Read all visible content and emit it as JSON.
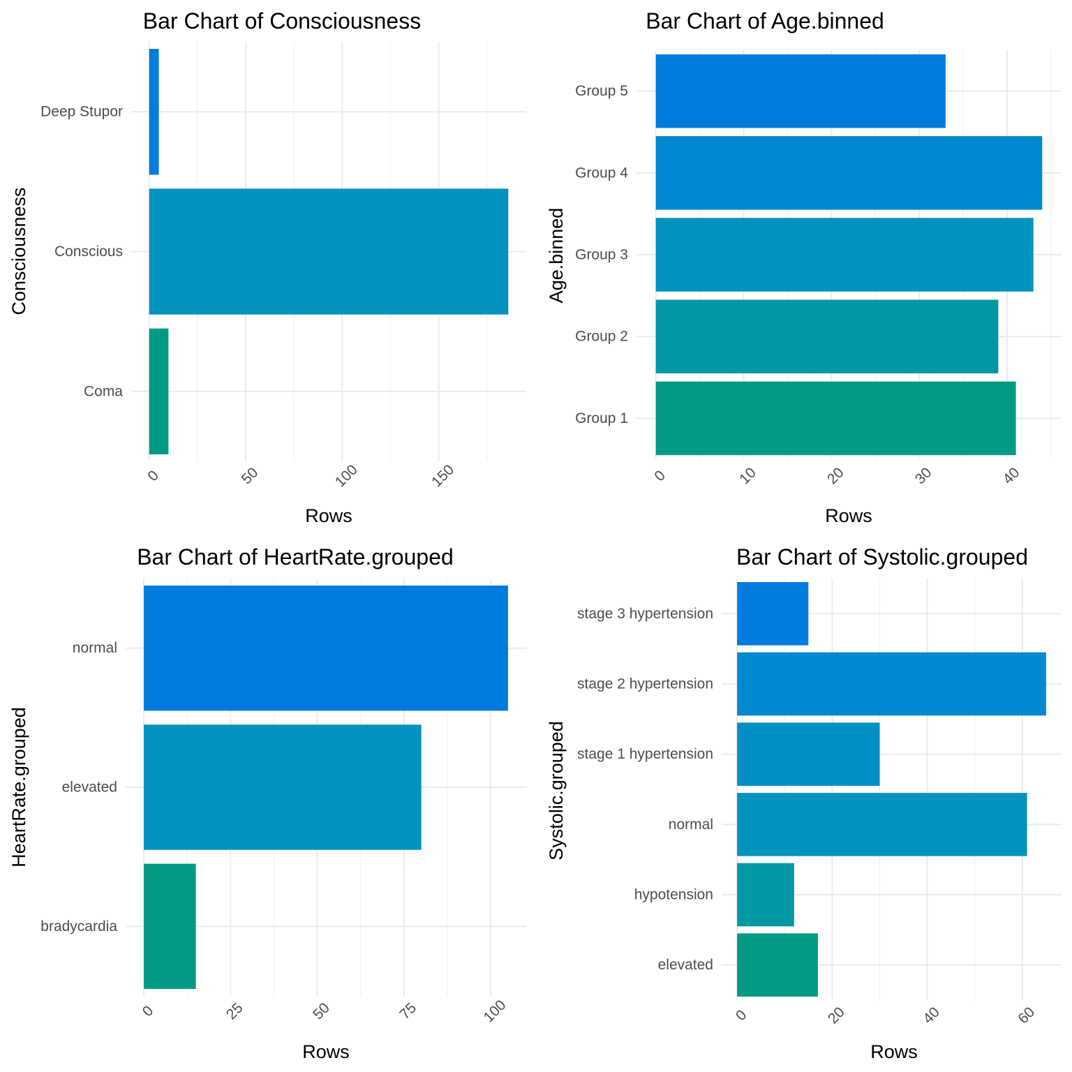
{
  "chart_data": [
    {
      "type": "bar",
      "orientation": "horizontal",
      "title": "Bar Chart of Consciousness",
      "xlabel": "Rows",
      "ylabel": "Consciousness",
      "categories": [
        "Coma",
        "Conscious",
        "Deep Stupor"
      ],
      "values": [
        10,
        186,
        5
      ],
      "colors": [
        "#009B82",
        "#0093BE",
        "#007BDE"
      ],
      "xticks": [
        0,
        50,
        100,
        150
      ],
      "xlim": [
        -9.3,
        195.3
      ],
      "grid": true
    },
    {
      "type": "bar",
      "orientation": "horizontal",
      "title": "Bar Chart of Age.binned",
      "xlabel": "Rows",
      "ylabel": "Age.binned",
      "categories": [
        "Group 1",
        "Group 2",
        "Group 3",
        "Group 4",
        "Group 5"
      ],
      "values": [
        41,
        39,
        43,
        44,
        33
      ],
      "colors": [
        "#009B82",
        "#0098A4",
        "#0093BE",
        "#0088D1",
        "#007BDE"
      ],
      "xticks": [
        0,
        10,
        20,
        30,
        40
      ],
      "xlim": [
        -2.2,
        46.2
      ],
      "grid": true
    },
    {
      "type": "bar",
      "orientation": "horizontal",
      "title": "Bar Chart of HeartRate.grouped",
      "xlabel": "Rows",
      "ylabel": "HeartRate.grouped",
      "categories": [
        "bradycardia",
        "elevated",
        "normal"
      ],
      "values": [
        15,
        80,
        105
      ],
      "colors": [
        "#009B82",
        "#0093BE",
        "#007BDE"
      ],
      "xticks": [
        0,
        25,
        50,
        75,
        100
      ],
      "xlim": [
        -5.25,
        110.25
      ],
      "grid": true
    },
    {
      "type": "bar",
      "orientation": "horizontal",
      "title": "Bar Chart of Systolic.grouped",
      "xlabel": "Rows",
      "ylabel": "Systolic.grouped",
      "categories": [
        "elevated",
        "hypotension",
        "normal",
        "stage 1 hypertension",
        "stage 2 hypertension",
        "stage 3 hypertension"
      ],
      "values": [
        17,
        12,
        61,
        30,
        65,
        15
      ],
      "colors": [
        "#009B82",
        "#0098A4",
        "#0093BE",
        "#0090C6",
        "#0088D1",
        "#007BDE"
      ],
      "xticks": [
        0,
        20,
        40,
        60
      ],
      "xlim": [
        -3.25,
        68.25
      ],
      "grid": true
    }
  ]
}
